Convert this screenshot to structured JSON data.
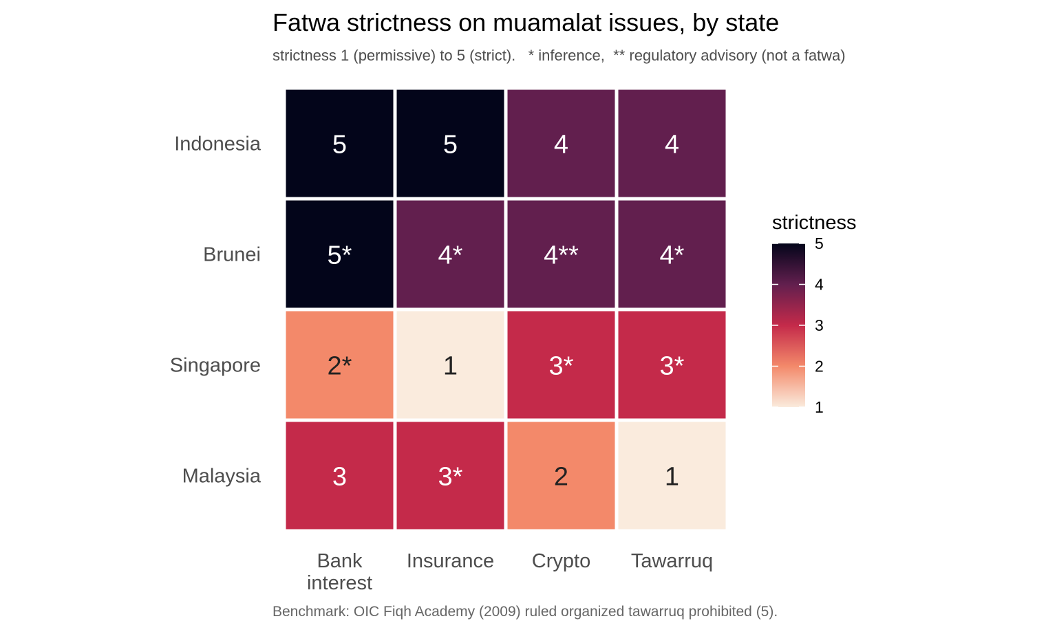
{
  "chart_data": {
    "type": "heatmap",
    "title": "Fatwa strictness on muamalat issues, by state",
    "subtitle": "strictness 1 (permissive) to 5 (strict).   * inference,  ** regulatory advisory (not a fatwa)",
    "caption": "Benchmark: OIC Fiqh Academy (2009) ruled organized tawarruq prohibited (5).",
    "x_categories": [
      [
        "Bank",
        "interest"
      ],
      [
        "Insurance"
      ],
      [
        "Crypto"
      ],
      [
        "Tawarruq"
      ]
    ],
    "y_categories": [
      "Indonesia",
      "Brunei",
      "Singapore",
      "Malaysia"
    ],
    "values": [
      [
        5,
        5,
        4,
        4
      ],
      [
        5,
        4,
        4,
        4
      ],
      [
        2,
        1,
        3,
        3
      ],
      [
        3,
        3,
        2,
        1
      ]
    ],
    "labels": [
      [
        "5",
        "5",
        "4",
        "4"
      ],
      [
        "5*",
        "4*",
        "4**",
        "4*"
      ],
      [
        "2*",
        "1",
        "3*",
        "3*"
      ],
      [
        "3",
        "3*",
        "2",
        "1"
      ]
    ],
    "legend": {
      "title": "strictness",
      "ticks": [
        5,
        4,
        3,
        2,
        1
      ],
      "range": [
        1,
        5
      ],
      "placement": "right"
    },
    "colors": {
      "1": "#FAEBDD",
      "2": "#F3896A",
      "3": "#C42A4A",
      "4": "#621F4E",
      "5": "#03051A",
      "text_light": "#ffffff",
      "text_dark": "#222222"
    }
  }
}
